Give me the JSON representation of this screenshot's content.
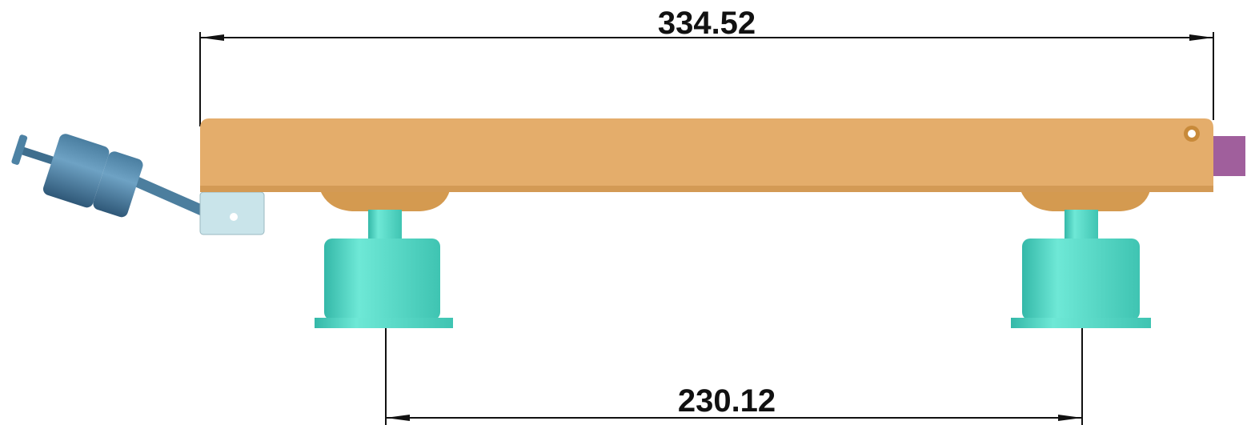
{
  "dimensions": [
    {
      "label": "334.52"
    },
    {
      "label": "230.12"
    }
  ]
}
